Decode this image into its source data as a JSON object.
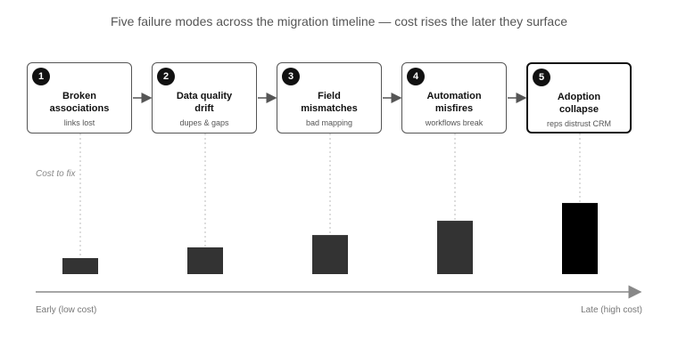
{
  "title": "Five failure modes across the migration timeline — cost rises the later they surface",
  "steps": [
    {
      "number": "1",
      "title": "Broken\nassociations",
      "subtitle": "links lost"
    },
    {
      "number": "2",
      "title": "Data quality\ndrift",
      "subtitle": "dupes & gaps"
    },
    {
      "number": "3",
      "title": "Field\nmismatches",
      "subtitle": "bad mapping"
    },
    {
      "number": "4",
      "title": "Automation\nmisfires",
      "subtitle": "workflows break"
    },
    {
      "number": "5",
      "title": "Adoption\ncollapse",
      "subtitle": "reps distrust CRM"
    }
  ],
  "cost_label": "Cost to fix",
  "cost_levels": [
    1,
    1.67,
    2.44,
    3.33,
    4.44
  ],
  "axis": {
    "start_label": "Early (low cost)",
    "end_label": "Late (high cost)"
  },
  "colors": {
    "bar": "#333333",
    "bar_highlight": "#000000",
    "connector": "#555555",
    "guide": "#bbbbbb"
  }
}
